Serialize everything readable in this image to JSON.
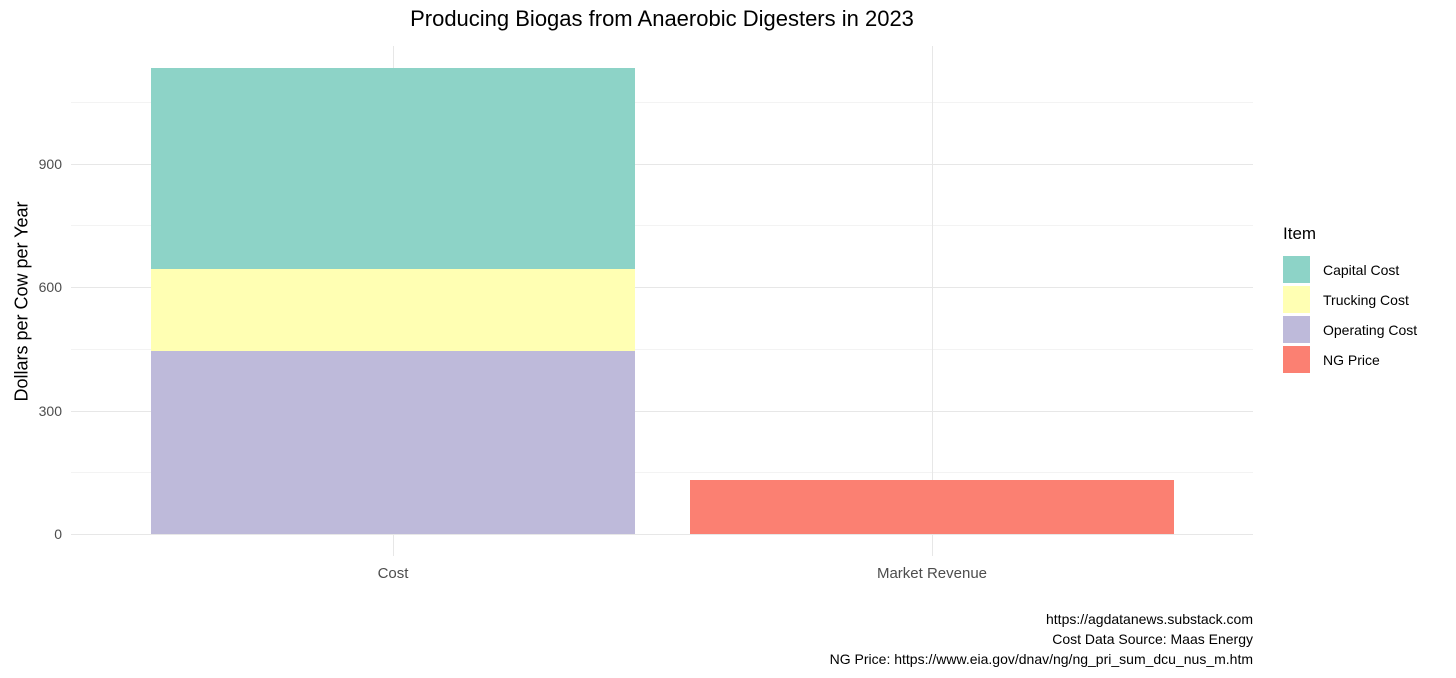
{
  "title": "Producing Biogas from Anaerobic Digesters in 2023",
  "chart_data": {
    "type": "bar",
    "stacked": true,
    "orientation": "vertical",
    "title": "Producing Biogas from Anaerobic Digesters in 2023",
    "xlabel": "",
    "ylabel": "Dollars per Cow per Year",
    "categories": [
      "Cost",
      "Market Revenue"
    ],
    "series": [
      {
        "name": "Capital Cost",
        "color": "#8DD3C7",
        "values": [
          490,
          0
        ]
      },
      {
        "name": "Trucking Cost",
        "color": "#FFFFB3",
        "values": [
          198,
          0
        ]
      },
      {
        "name": "Operating Cost",
        "color": "#BEBADA",
        "values": [
          445,
          0
        ]
      },
      {
        "name": "NG Price",
        "color": "#FB8072",
        "values": [
          0,
          131
        ]
      }
    ],
    "totals": {
      "Cost": 1133,
      "Market Revenue": 131
    },
    "ylim": [
      0,
      1190
    ],
    "yticks": [
      0,
      300,
      600,
      900
    ],
    "yticks_minor": [
      150,
      450,
      750,
      1050
    ],
    "grid": true,
    "legend_title": "Item",
    "legend_position": "right",
    "caption_lines": [
      "https://agdatanews.substack.com",
      "Cost Data Source: Maas Energy",
      "NG Price: https://www.eia.gov/dnav/ng/ng_pri_sum_dcu_nus_m.htm"
    ]
  },
  "colors": {
    "background": "#ffffff",
    "grid_major": "#e7e7e7",
    "grid_minor": "#f3f3f3",
    "axis_text": "#4d4d4d",
    "title_text": "#000000"
  }
}
